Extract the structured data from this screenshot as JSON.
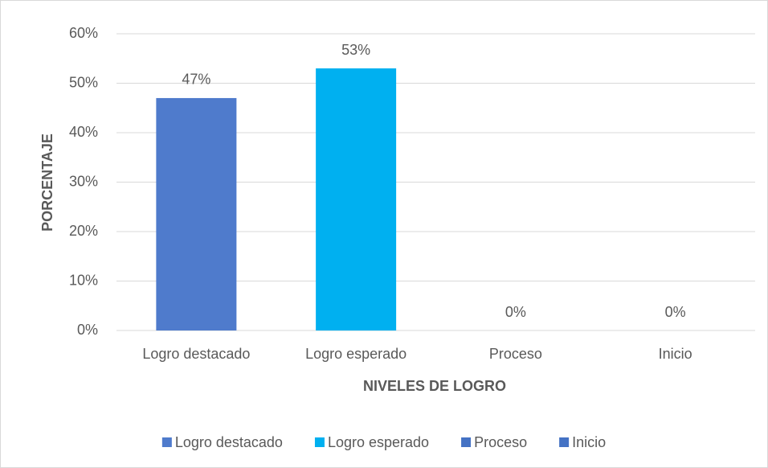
{
  "chart_data": {
    "type": "bar",
    "categories": [
      "Logro destacado",
      "Logro esperado",
      "Proceso",
      "Inicio"
    ],
    "values": [
      47,
      53,
      0,
      0
    ],
    "value_labels": [
      "47%",
      "53%",
      "0%",
      "0%"
    ],
    "colors": [
      "#4f7bcc",
      "#00b0f0",
      "#4472c4",
      "#4472c4"
    ],
    "ylabel": "PORCENTAJE",
    "xlabel": "NIVELES DE LOGRO",
    "ylim": [
      0,
      60
    ],
    "yticks": [
      {
        "value": 0,
        "label": "0%"
      },
      {
        "value": 10,
        "label": "10%"
      },
      {
        "value": 20,
        "label": "20%"
      },
      {
        "value": 30,
        "label": "30%"
      },
      {
        "value": 40,
        "label": "40%"
      },
      {
        "value": 50,
        "label": "50%"
      },
      {
        "value": 60,
        "label": "60%"
      }
    ],
    "grid": true,
    "legend": "bottom"
  }
}
